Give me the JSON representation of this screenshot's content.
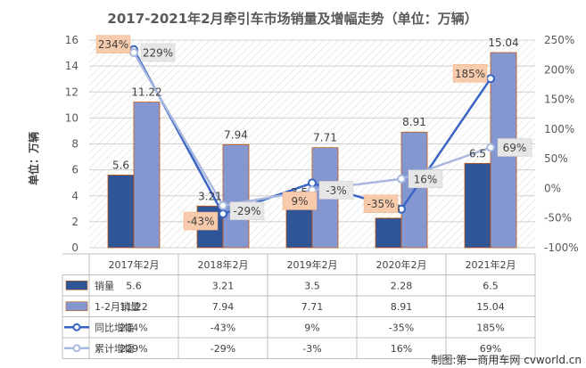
{
  "chart_data": {
    "type": "bar",
    "title": "2017-2021年2月牵引车市场销量及增幅走势（单位：万辆）",
    "ylabel": "单位：万辆",
    "categories": [
      "2017年2月",
      "2018年2月",
      "2019年2月",
      "2020年2月",
      "2021年2月"
    ],
    "ylim": [
      0,
      16
    ],
    "yticks": [
      "0",
      "2",
      "4",
      "6",
      "8",
      "10",
      "12",
      "14",
      "16"
    ],
    "y2lim": [
      -100,
      250
    ],
    "y2ticks": [
      "-100%",
      "-50%",
      "0%",
      "50%",
      "100%",
      "150%",
      "200%",
      "250%"
    ],
    "grid": true,
    "legend_position": "bottom-table",
    "series": [
      {
        "name": "销量",
        "kind": "bar",
        "axis": "left",
        "color": "#2f5597",
        "values": [
          5.6,
          3.21,
          3.5,
          2.28,
          6.5
        ],
        "labels": [
          "5.6",
          "3.21",
          "3.5",
          "2.28",
          "6.5"
        ],
        "table": [
          "5.6",
          "3.21",
          "3.5",
          "2.28",
          "6.5"
        ]
      },
      {
        "name": "1-2月销量",
        "kind": "bar",
        "axis": "left",
        "color": "#8497d0",
        "values": [
          11.22,
          7.94,
          7.71,
          8.91,
          15.04
        ],
        "labels": [
          "11.22",
          "7.94",
          "7.71",
          "8.91",
          "15.04"
        ],
        "table": [
          "11.22",
          "7.94",
          "7.71",
          "8.91",
          "15.04"
        ]
      },
      {
        "name": "同比增幅",
        "kind": "line",
        "axis": "right",
        "color": "#3864c4",
        "values": [
          234,
          -43,
          9,
          -35,
          185
        ],
        "labels": [
          "234%",
          "-43%",
          "9%",
          "-35%",
          "185%"
        ],
        "table": [
          "234%",
          "-43%",
          "9%",
          "-35%",
          "185%"
        ]
      },
      {
        "name": "累计增幅",
        "kind": "line",
        "axis": "right",
        "color": "#a9b8df",
        "values": [
          229,
          -29,
          -3,
          16,
          69
        ],
        "labels": [
          "229%",
          "-29%",
          "-3%",
          "16%",
          "69%"
        ],
        "table": [
          "229%",
          "-29%",
          "-3%",
          "16%",
          "69%"
        ]
      }
    ]
  },
  "footer": {
    "credit": "制图:第一商用车网 cvworld.cn"
  }
}
